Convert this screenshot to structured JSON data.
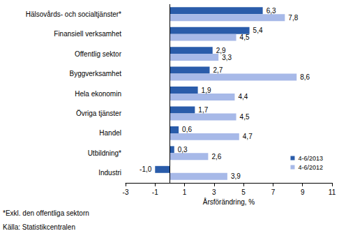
{
  "chart_data": {
    "type": "bar",
    "orientation": "horizontal",
    "x_label": "Årsförändring, %",
    "categories": [
      "Hälsovårds- och socialtjänster*",
      "Finansiell verksamhet",
      "Offentlig sektor",
      "Byggverksamhet",
      "Hela ekonomin",
      "Övriga tjänster",
      "Handel",
      "Utbildning*",
      "Industri"
    ],
    "series": [
      {
        "name": "4-6/2013",
        "color": "#2a5caa",
        "values": [
          6.3,
          5.4,
          2.9,
          2.7,
          1.9,
          1.7,
          0.6,
          0.3,
          -1.0
        ],
        "value_labels": [
          "6,3",
          "5,4",
          "2,9",
          "2,7",
          "1,9",
          "1,7",
          "0,6",
          "0,3",
          "-1,0"
        ]
      },
      {
        "name": "4-6/2012",
        "color": "#a7b9e8",
        "values": [
          7.8,
          4.5,
          3.3,
          8.6,
          4.4,
          4.5,
          4.7,
          2.6,
          3.9
        ],
        "value_labels": [
          "7,8",
          "4,5",
          "3,3",
          "8,6",
          "4,4",
          "4,5",
          "4,7",
          "2,6",
          "3,9"
        ]
      }
    ],
    "xlim": [
      -3,
      11
    ],
    "xticks": [
      -3,
      -1,
      1,
      3,
      5,
      7,
      9,
      11
    ],
    "data_labels": true,
    "grid": false,
    "legend": "lower right",
    "annotations": [
      "*Exkl. den offentliga sektorn",
      "Källa: Statistikcentralen"
    ]
  }
}
